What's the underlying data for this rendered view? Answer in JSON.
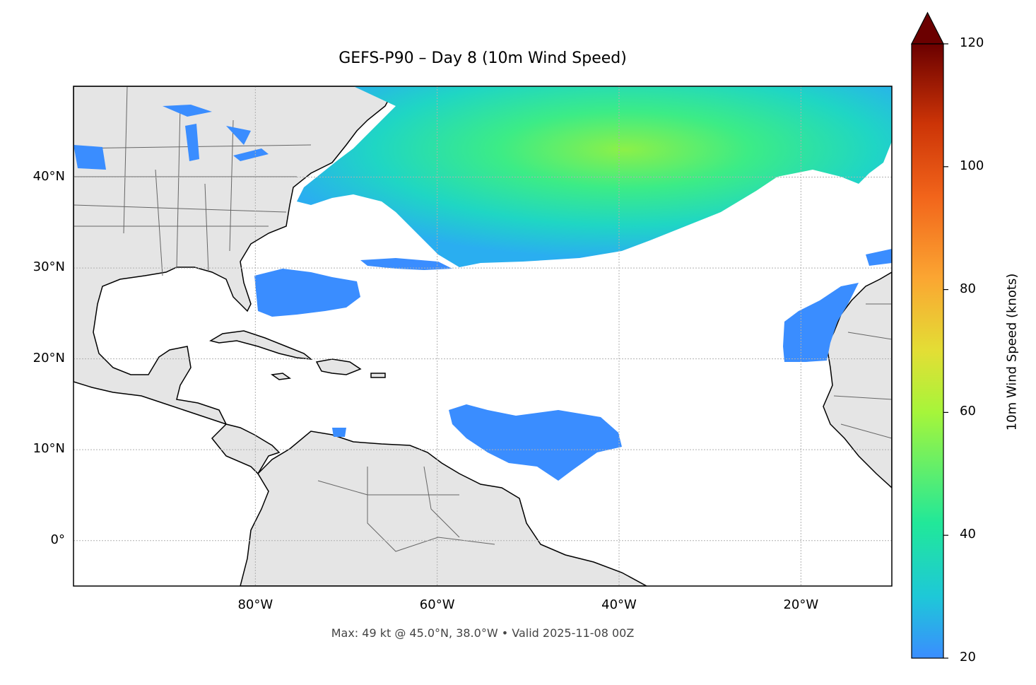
{
  "title": "GEFS-P90 – Day 8 (10m Wind Speed)",
  "caption": "Max: 49 kt @ 45.0°N, 38.0°W • Valid 2025-11-08 00Z",
  "map": {
    "extent": {
      "lon_min": -100,
      "lon_max": -10,
      "lat_min": -5,
      "lat_max": 50
    },
    "lat_ticks": [
      {
        "value": 40,
        "label": "40°N"
      },
      {
        "value": 30,
        "label": "30°N"
      },
      {
        "value": 20,
        "label": "20°N"
      },
      {
        "value": 10,
        "label": "10°N"
      },
      {
        "value": 0,
        "label": "0°"
      }
    ],
    "lon_ticks": [
      {
        "value": -80,
        "label": "80°W"
      },
      {
        "value": -60,
        "label": "60°W"
      },
      {
        "value": -40,
        "label": "40°W"
      },
      {
        "value": -20,
        "label": "20°W"
      }
    ],
    "gridlines": true,
    "land_color": "#e5e5e5",
    "max_wind": {
      "value_kt": 49,
      "lat": 45.0,
      "lon": -38.0
    }
  },
  "colorbar": {
    "label": "10m Wind Speed (knots)",
    "min": 20,
    "max": 120,
    "extend": "max",
    "ticks": [
      "20",
      "40",
      "60",
      "80",
      "100",
      "120"
    ],
    "colormap": [
      "#3a8dff",
      "#1ec8d8",
      "#21e899",
      "#a6f53a",
      "#e3de35",
      "#fba532",
      "#f2651b",
      "#cc3407",
      "#8e0f02",
      "#6b0000"
    ]
  }
}
